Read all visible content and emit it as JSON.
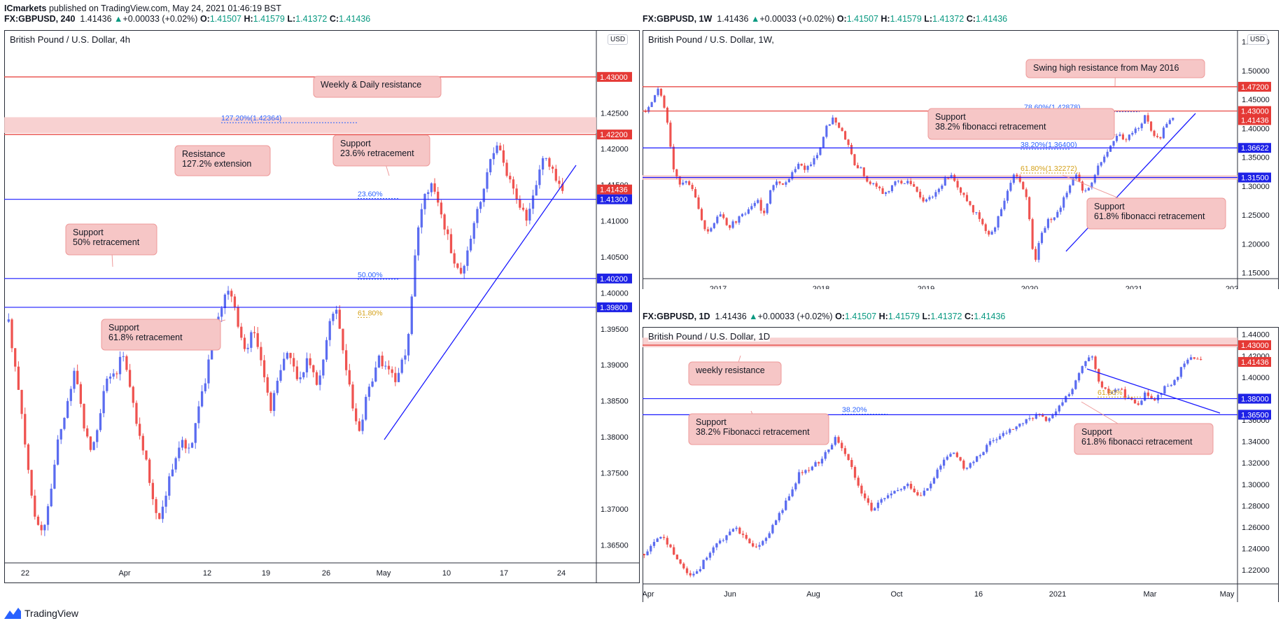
{
  "header": {
    "publisher": "ICmarkets",
    "published_text": "published on TradingView.com, May 24, 2021 01:46:19 BST"
  },
  "colors": {
    "up": "#5b6cf0",
    "down": "#ef5350",
    "blue_line": "#1a1aff",
    "red_line": "#e53935",
    "zone": "#f7c9c9",
    "label_bg": "#f6c6c6",
    "label_border": "#ee9a9a",
    "price_red": "#e53935",
    "price_blue": "#1e22e6",
    "fib_blue": "#2962ff",
    "fib_gold": "#d4a017"
  },
  "footer": {
    "logo_icon": "tradingview-logo-icon",
    "text": "TradingView"
  },
  "charts": [
    {
      "id": "h4",
      "header": {
        "symbol": "FX:GBPUSD, 240",
        "last": "1.41436",
        "change": "+0.00033 (+0.02%)",
        "o_label": "O:",
        "o": "1.41507",
        "h_label": "H:",
        "h": "1.41579",
        "l_label": "L:",
        "l": "1.41372",
        "c_label": "C:",
        "c": "1.41436"
      },
      "title": "British Pound / U.S. Dollar, 4h",
      "currency": "USD",
      "chart_data": {
        "type": "candlestick",
        "title": "British Pound / U.S. Dollar, 4h",
        "ylim": [
          1.3625,
          1.4365
        ],
        "y_ticks": [
          "1.42500",
          "1.42000",
          "1.41500",
          "1.41000",
          "1.40500",
          "1.40000",
          "1.39500",
          "1.39000",
          "1.38500",
          "1.38000",
          "1.37500",
          "1.37000",
          "1.36500"
        ],
        "x_ticks": [
          "22",
          "Apr",
          "12",
          "19",
          "26",
          "May",
          "10",
          "17",
          "24"
        ],
        "price_path": [
          1.396,
          1.39,
          1.384,
          1.378,
          1.371,
          1.367,
          1.368,
          1.372,
          1.378,
          1.382,
          1.385,
          1.389,
          1.385,
          1.38,
          1.378,
          1.381,
          1.386,
          1.389,
          1.388,
          1.392,
          1.388,
          1.384,
          1.38,
          1.377,
          1.372,
          1.368,
          1.37,
          1.374,
          1.377,
          1.38,
          1.378,
          1.38,
          1.384,
          1.388,
          1.392,
          1.396,
          1.399,
          1.401,
          1.398,
          1.394,
          1.392,
          1.395,
          1.392,
          1.388,
          1.384,
          1.387,
          1.39,
          1.392,
          1.389,
          1.388,
          1.391,
          1.389,
          1.387,
          1.392,
          1.396,
          1.398,
          1.393,
          1.388,
          1.383,
          1.381,
          1.385,
          1.388,
          1.391,
          1.39,
          1.389,
          1.388,
          1.39,
          1.393,
          1.403,
          1.41,
          1.414,
          1.415,
          1.413,
          1.41,
          1.407,
          1.404,
          1.402,
          1.406,
          1.409,
          1.412,
          1.415,
          1.419,
          1.421,
          1.418,
          1.416,
          1.414,
          1.412,
          1.41,
          1.413,
          1.417,
          1.419,
          1.417,
          1.416,
          1.414
        ],
        "horizontal_levels": [
          {
            "price": "1.43000",
            "kind": "resistance"
          },
          {
            "price": "1.42200",
            "kind": "resistance"
          },
          {
            "price": "1.41436",
            "kind": "last"
          },
          {
            "price": "1.41300",
            "kind": "support"
          },
          {
            "price": "1.40200",
            "kind": "support"
          },
          {
            "price": "1.39800",
            "kind": "support"
          }
        ],
        "zones": [
          {
            "from": 1.4222,
            "to": 1.4244
          }
        ],
        "fib_levels": [
          {
            "label": "127.20%(1.42364)",
            "price": 1.42364
          },
          {
            "label": "23.60%",
            "price": 1.4131
          },
          {
            "label": "50.00%",
            "price": 1.4019
          },
          {
            "label": "61.80%",
            "price": 1.3966
          }
        ],
        "annotations": [
          {
            "lines": [
              "Weekly & Daily resistance"
            ]
          },
          {
            "lines": [
              "Resistance",
              "127.2% extension"
            ]
          },
          {
            "lines": [
              "Support",
              "23.6% retracement"
            ]
          },
          {
            "lines": [
              "Support",
              "50% retracement"
            ]
          },
          {
            "lines": [
              "Support",
              "61.8% retracement"
            ]
          }
        ]
      }
    },
    {
      "id": "w1",
      "header": {
        "symbol": "FX:GBPUSD, 1W",
        "last": "1.41436",
        "change": "+0.00033 (+0.02%)",
        "o_label": "O:",
        "o": "1.41507",
        "h_label": "H:",
        "h": "1.41579",
        "l_label": "L:",
        "l": "1.41372",
        "c_label": "C:",
        "c": "1.41436"
      },
      "title": "British Pound / U.S. Dollar, 1W,",
      "currency": "USD",
      "chart_data": {
        "type": "candlestick",
        "title": "British Pound / U.S. Dollar, 1W,",
        "ylim": [
          1.14,
          1.57
        ],
        "y_ticks": [
          "1.55000",
          "1.50000",
          "1.45000",
          "1.40000",
          "1.35000",
          "1.30000",
          "1.25000",
          "1.20000",
          "1.15000"
        ],
        "x_ticks": [
          "2017",
          "2018",
          "2019",
          "2020",
          "2021",
          "202"
        ],
        "price_path": [
          1.43,
          1.45,
          1.47,
          1.42,
          1.33,
          1.3,
          1.31,
          1.29,
          1.24,
          1.22,
          1.24,
          1.25,
          1.23,
          1.24,
          1.25,
          1.26,
          1.28,
          1.25,
          1.29,
          1.31,
          1.3,
          1.32,
          1.34,
          1.33,
          1.34,
          1.36,
          1.4,
          1.42,
          1.4,
          1.38,
          1.34,
          1.33,
          1.31,
          1.3,
          1.29,
          1.29,
          1.31,
          1.3,
          1.31,
          1.29,
          1.27,
          1.28,
          1.29,
          1.31,
          1.32,
          1.3,
          1.28,
          1.26,
          1.25,
          1.22,
          1.22,
          1.25,
          1.29,
          1.32,
          1.31,
          1.28,
          1.16,
          1.22,
          1.24,
          1.25,
          1.27,
          1.3,
          1.32,
          1.29,
          1.3,
          1.33,
          1.35,
          1.37,
          1.39,
          1.38,
          1.39,
          1.4,
          1.42,
          1.39,
          1.38,
          1.41,
          1.415
        ],
        "horizontal_levels": [
          {
            "price": "1.47200",
            "kind": "resistance"
          },
          {
            "price": "1.43000",
            "kind": "resistance"
          },
          {
            "price": "1.41436",
            "kind": "last"
          },
          {
            "price": "1.36622",
            "kind": "support"
          },
          {
            "price": "1.31500",
            "kind": "support"
          }
        ],
        "zones": [
          {
            "from": 1.311,
            "to": 1.319
          }
        ],
        "fib_levels": [
          {
            "label": "78.60%(1.42878)",
            "price": 1.42878
          },
          {
            "label": "38.20%(1.36400)",
            "price": 1.364
          },
          {
            "label": "61.80%(1.32272)",
            "price": 1.32272
          }
        ],
        "annotations": [
          {
            "lines": [
              "Swing high resistance from May 2016"
            ]
          },
          {
            "lines": [
              "Support",
              "38.2% fibonacci retracement"
            ]
          },
          {
            "lines": [
              "Support",
              "61.8% fibonacci retracement"
            ]
          }
        ]
      }
    },
    {
      "id": "d1",
      "header": {
        "symbol": "FX:GBPUSD, 1D",
        "last": "1.41436",
        "change": "+0.00033 (+0.02%)",
        "o_label": "O:",
        "o": "1.41507",
        "h_label": "H:",
        "h": "1.41579",
        "l_label": "L:",
        "l": "1.41372",
        "c_label": "C:",
        "c": "1.41436"
      },
      "title": "British Pound / U.S. Dollar, 1D",
      "currency": "",
      "chart_data": {
        "type": "candlestick",
        "title": "British Pound / U.S. Dollar, 1D",
        "ylim": [
          1.207,
          1.447
        ],
        "y_ticks": [
          "1.44000",
          "1.42000",
          "1.40000",
          "1.38000",
          "1.36000",
          "1.34000",
          "1.32000",
          "1.30000",
          "1.28000",
          "1.26000",
          "1.24000",
          "1.22000"
        ],
        "x_ticks": [
          "Apr",
          "Jun",
          "Aug",
          "Oct",
          "16",
          "2021",
          "Mar",
          "May"
        ],
        "price_path": [
          1.235,
          1.245,
          1.25,
          1.24,
          1.225,
          1.215,
          1.22,
          1.235,
          1.245,
          1.25,
          1.26,
          1.25,
          1.24,
          1.245,
          1.26,
          1.275,
          1.29,
          1.31,
          1.315,
          1.32,
          1.33,
          1.345,
          1.33,
          1.31,
          1.29,
          1.275,
          1.285,
          1.29,
          1.295,
          1.3,
          1.29,
          1.295,
          1.31,
          1.325,
          1.33,
          1.315,
          1.32,
          1.33,
          1.34,
          1.345,
          1.35,
          1.355,
          1.36,
          1.365,
          1.36,
          1.365,
          1.38,
          1.39,
          1.41,
          1.42,
          1.39,
          1.385,
          1.39,
          1.38,
          1.375,
          1.385,
          1.38,
          1.39,
          1.395,
          1.41,
          1.42,
          1.415
        ],
        "horizontal_levels": [
          {
            "price": "1.43000",
            "kind": "resistance"
          },
          {
            "price": "1.41436",
            "kind": "last"
          },
          {
            "price": "1.38000",
            "kind": "support"
          },
          {
            "price": "1.36500",
            "kind": "support"
          }
        ],
        "zones": [
          {
            "from": 1.428,
            "to": 1.437
          }
        ],
        "fib_levels": [
          {
            "label": "38.20%",
            "price": 1.3655
          },
          {
            "label": "61.80%",
            "price": 1.3815
          }
        ],
        "annotations": [
          {
            "lines": [
              "weekly resistance"
            ]
          },
          {
            "lines": [
              "Support",
              "38.2% Fibonacci retracement"
            ]
          },
          {
            "lines": [
              "Support",
              "61.8% fibonacci retracement"
            ]
          }
        ]
      }
    }
  ]
}
